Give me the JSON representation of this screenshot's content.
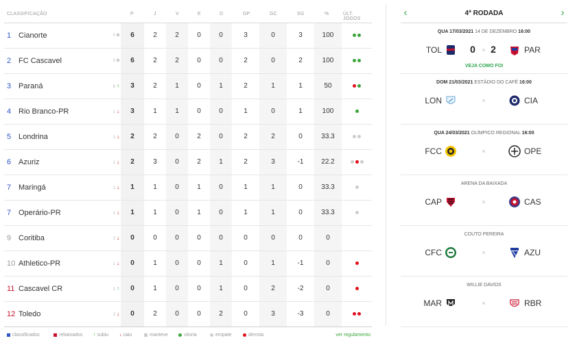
{
  "table": {
    "headers": {
      "classification": "CLASSIFICAÇÃO",
      "p": "P",
      "j": "J",
      "v": "V",
      "e": "E",
      "d": "D",
      "gp": "GP",
      "gc": "GC",
      "sg": "SG",
      "pct": "%",
      "last": "ÚLT. JOGOS"
    },
    "rows": [
      {
        "pos": "1",
        "team": "Cianorte",
        "var": "0",
        "move": "same",
        "p": "6",
        "j": "2",
        "v": "2",
        "e": "0",
        "d": "0",
        "gp": "3",
        "gc": "0",
        "sg": "3",
        "pct": "100",
        "last": [
          "v",
          "v"
        ],
        "pos_color": "blue"
      },
      {
        "pos": "2",
        "team": "FC Cascavel",
        "var": "0",
        "move": "same",
        "p": "6",
        "j": "2",
        "v": "2",
        "e": "0",
        "d": "0",
        "gp": "2",
        "gc": "0",
        "sg": "2",
        "pct": "100",
        "last": [
          "v",
          "v"
        ],
        "pos_color": "blue"
      },
      {
        "pos": "3",
        "team": "Paraná",
        "var": "6",
        "move": "up",
        "p": "3",
        "j": "2",
        "v": "1",
        "e": "0",
        "d": "1",
        "gp": "2",
        "gc": "1",
        "sg": "1",
        "pct": "50",
        "last": [
          "d",
          "v"
        ],
        "pos_color": "blue"
      },
      {
        "pos": "4",
        "team": "Rio Branco-PR",
        "var": "1",
        "move": "down",
        "p": "3",
        "j": "1",
        "v": "1",
        "e": "0",
        "d": "0",
        "gp": "1",
        "gc": "0",
        "sg": "1",
        "pct": "100",
        "last": [
          "v"
        ],
        "pos_color": "blue"
      },
      {
        "pos": "5",
        "team": "Londrina",
        "var": "1",
        "move": "down",
        "p": "2",
        "j": "2",
        "v": "0",
        "e": "2",
        "d": "0",
        "gp": "2",
        "gc": "2",
        "sg": "0",
        "pct": "33.3",
        "last": [
          "e",
          "e"
        ],
        "pos_color": "blue"
      },
      {
        "pos": "6",
        "team": "Azuriz",
        "var": "1",
        "move": "down",
        "p": "2",
        "j": "3",
        "v": "0",
        "e": "2",
        "d": "1",
        "gp": "2",
        "gc": "3",
        "sg": "-1",
        "pct": "22.2",
        "last": [
          "e",
          "d",
          "e"
        ],
        "pos_color": "blue"
      },
      {
        "pos": "7",
        "team": "Maringá",
        "var": "1",
        "move": "down",
        "p": "1",
        "j": "1",
        "v": "0",
        "e": "1",
        "d": "0",
        "gp": "1",
        "gc": "1",
        "sg": "0",
        "pct": "33.3",
        "last": [
          "e"
        ],
        "pos_color": "blue"
      },
      {
        "pos": "7",
        "team": "Operário-PR",
        "var": "1",
        "move": "down",
        "p": "1",
        "j": "1",
        "v": "0",
        "e": "1",
        "d": "0",
        "gp": "1",
        "gc": "1",
        "sg": "0",
        "pct": "33.3",
        "last": [
          "e"
        ],
        "pos_color": "blue"
      },
      {
        "pos": "9",
        "team": "Coritiba",
        "var": "2",
        "move": "down",
        "p": "0",
        "j": "0",
        "v": "0",
        "e": "0",
        "d": "0",
        "gp": "0",
        "gc": "0",
        "sg": "0",
        "pct": "0",
        "last": [],
        "pos_color": "gray"
      },
      {
        "pos": "10",
        "team": "Athletico-PR",
        "var": "1",
        "move": "down",
        "p": "0",
        "j": "1",
        "v": "0",
        "e": "0",
        "d": "1",
        "gp": "0",
        "gc": "1",
        "sg": "-1",
        "pct": "0",
        "last": [
          "d"
        ],
        "pos_color": "gray"
      },
      {
        "pos": "11",
        "team": "Cascavel CR",
        "var": "1",
        "move": "up",
        "p": "0",
        "j": "1",
        "v": "0",
        "e": "0",
        "d": "1",
        "gp": "0",
        "gc": "2",
        "sg": "-2",
        "pct": "0",
        "last": [
          "d"
        ],
        "pos_color": "red"
      },
      {
        "pos": "12",
        "team": "Toledo",
        "var": "3",
        "move": "down",
        "p": "0",
        "j": "2",
        "v": "0",
        "e": "0",
        "d": "2",
        "gp": "0",
        "gc": "3",
        "sg": "-3",
        "pct": "0",
        "last": [
          "d",
          "d"
        ],
        "pos_color": "red"
      }
    ]
  },
  "legend": {
    "classified": "classificados",
    "relegated": "rebaixados",
    "up": "subiu",
    "down": "caiu",
    "kept": "manteve",
    "win": "vitoria",
    "draw": "empate",
    "loss": "derrota",
    "rules_link": "ver regulamento"
  },
  "round": {
    "title": "4ª RODADA",
    "prev_icon": "chevron-left-icon",
    "next_icon": "chevron-right-icon",
    "matches": [
      {
        "date": "QUA 17/03/2021",
        "venue": "14 DE DEZEMBRO",
        "time": "16:00",
        "home": "TOL",
        "away": "PAR",
        "home_score": "0",
        "away_score": "2",
        "sep": "×",
        "see_how": "VEJA COMO FOI",
        "home_crest": "toledo-crest",
        "away_crest": "parana-crest"
      },
      {
        "date": "DOM 21/03/2021",
        "venue": "ESTÁDIO DO CAFÉ",
        "time": "16:00",
        "home": "LON",
        "away": "CIA",
        "sep": "×",
        "home_crest": "londrina-crest",
        "away_crest": "cianorte-crest"
      },
      {
        "date": "QUA 24/03/2021",
        "venue": "OLÍMPICO REGIONAL",
        "time": "16:00",
        "home": "FCC",
        "away": "OPE",
        "sep": "×",
        "home_crest": "fc-cascavel-crest",
        "away_crest": "operario-crest"
      },
      {
        "date": "",
        "venue": "ARENA DA BAIXADA",
        "time": "",
        "home": "CAP",
        "away": "CAS",
        "sep": "×",
        "home_crest": "athletico-crest",
        "away_crest": "cascavel-cr-crest"
      },
      {
        "date": "",
        "venue": "COUTO PEREIRA",
        "time": "",
        "home": "CFC",
        "away": "AZU",
        "sep": "×",
        "home_crest": "coritiba-crest",
        "away_crest": "azuriz-crest"
      },
      {
        "date": "",
        "venue": "WILLIE DAVIDS",
        "time": "",
        "home": "MAR",
        "away": "RBR",
        "sep": "×",
        "home_crest": "maringa-crest",
        "away_crest": "rio-branco-crest"
      }
    ]
  },
  "colors": {
    "blue": "#2e56c8",
    "red": "#c8102e",
    "gray": "#999999",
    "green": "#2ea44f",
    "loss": "#e0101c",
    "draw": "#cccccc",
    "win": "#3aa63a"
  }
}
